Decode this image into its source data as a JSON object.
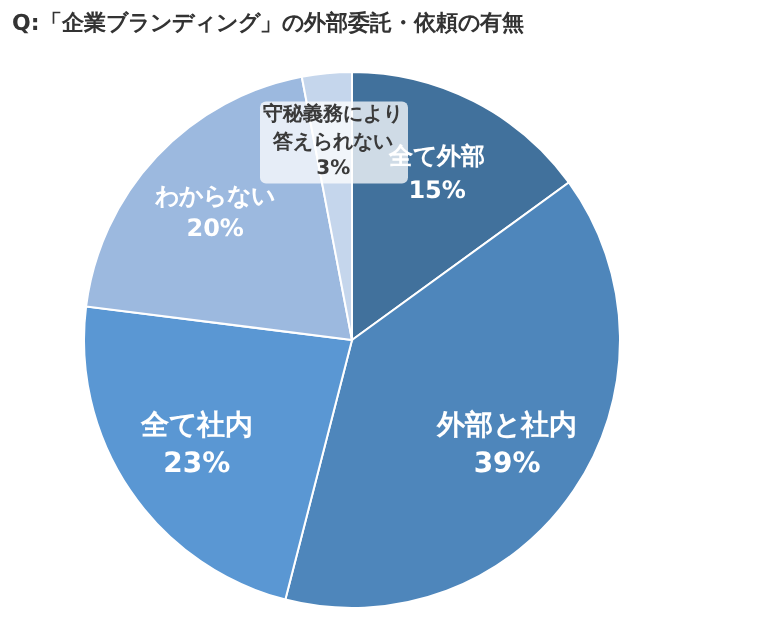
{
  "chart_data": {
    "type": "pie",
    "title": "Q:「企業ブランディング」の外部委託・依頼の有無",
    "categories": [
      "全て外部",
      "外部と社内",
      "全て社内",
      "わからない",
      "守秘義務により答えられない"
    ],
    "values": [
      15,
      39,
      23,
      20,
      3
    ],
    "colors": [
      "#41719c",
      "#4e86bb",
      "#5a97d3",
      "#9cb9df",
      "#c5d6ec"
    ],
    "value_labels": [
      "15%",
      "39%",
      "23%",
      "20%",
      "3%"
    ]
  }
}
